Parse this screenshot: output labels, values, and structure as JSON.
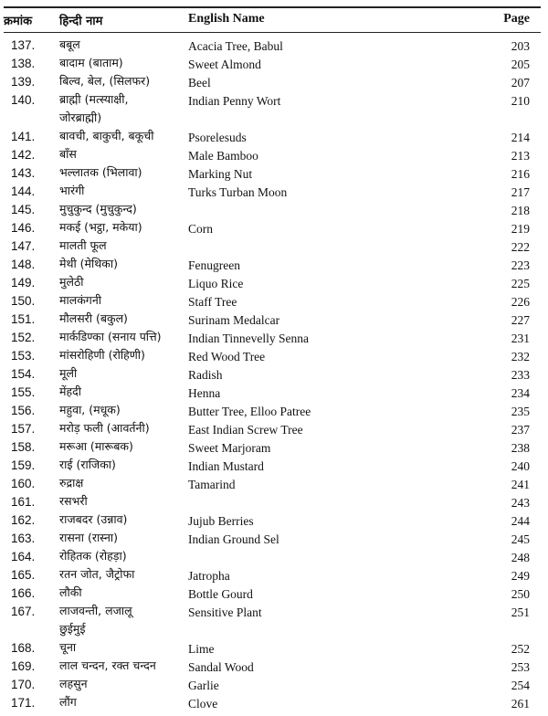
{
  "header": {
    "serial": "क्रमांक",
    "hindi": "हिन्दी नाम",
    "english": "English Name",
    "page": "Page"
  },
  "rows": [
    {
      "no": "137.",
      "hindi": "बबूल",
      "english": "Acacia Tree, Babul",
      "page": "203"
    },
    {
      "no": "138.",
      "hindi": "बादाम (बाताम)",
      "english": "Sweet Almond",
      "page": "205"
    },
    {
      "no": "139.",
      "hindi": "बिल्व, बेल, (सिलफर)",
      "english": "Beel",
      "page": "207"
    },
    {
      "no": "140.",
      "hindi": "ब्राह्मी (मत्स्याक्षी,",
      "hindi_cont": "जोरब्राह्मी)",
      "english": "Indian Penny Wort",
      "page": "210"
    },
    {
      "no": "141.",
      "hindi": "बावची, बाकुची, बकूची",
      "english": "Psorelesuds",
      "page": "214"
    },
    {
      "no": "142.",
      "hindi": "बाँस",
      "english": "Male Bamboo",
      "page": "213"
    },
    {
      "no": "143.",
      "hindi": "भल्लातक (भिलावा)",
      "english": "Marking Nut",
      "page": "216"
    },
    {
      "no": "144.",
      "hindi": "भारंगी",
      "english": "Turks Turban Moon",
      "page": "217"
    },
    {
      "no": "145.",
      "hindi": "मुचुकुन्द (मुचुकुन्द)",
      "english": "",
      "page": "218"
    },
    {
      "no": "146.",
      "hindi": "मकई (भट्ठा, मकेया)",
      "english": "Corn",
      "page": "219"
    },
    {
      "no": "147.",
      "hindi": "मालती फूल",
      "english": "",
      "page": "222"
    },
    {
      "no": "148.",
      "hindi": "मेथी (मेथिका)",
      "english": "Fenugreen",
      "page": "223"
    },
    {
      "no": "149.",
      "hindi": "मुलेठी",
      "english": "Liquo Rice",
      "page": "225"
    },
    {
      "no": "150.",
      "hindi": "मालकंगनी",
      "english": "Staff Tree",
      "page": "226"
    },
    {
      "no": "151.",
      "hindi": "मौलसरी (बकुल)",
      "english": "Surinam Medalcar",
      "page": "227"
    },
    {
      "no": "152.",
      "hindi": "मार्कडिण्का (सनाय पत्ति)",
      "english": "Indian Tinnevelly Senna",
      "page": "231"
    },
    {
      "no": "153.",
      "hindi": "मांसरोहिणी (रोहिणी)",
      "english": "Red Wood Tree",
      "page": "232"
    },
    {
      "no": "154.",
      "hindi": "मूली",
      "english": "Radish",
      "page": "233"
    },
    {
      "no": "155.",
      "hindi": "मेंहदी",
      "english": "Henna",
      "page": "234"
    },
    {
      "no": "156.",
      "hindi": "महुवा, (मधूक)",
      "english": "Butter Tree, Elloo Patree",
      "page": "235"
    },
    {
      "no": "157.",
      "hindi": "मरोड़ फली (आवर्तनी)",
      "english": "East Indian Screw Tree",
      "page": "237"
    },
    {
      "no": "158.",
      "hindi": "मरूआ (मारूबक)",
      "english": "Sweet Marjoram",
      "page": "238"
    },
    {
      "no": "159.",
      "hindi": "राई (राजिका)",
      "english": "Indian Mustard",
      "page": "240"
    },
    {
      "no": "160.",
      "hindi": "रुद्राक्ष",
      "english": "Tamarind",
      "page": "241"
    },
    {
      "no": "161.",
      "hindi": "रसभरी",
      "english": "",
      "page": "243"
    },
    {
      "no": "162.",
      "hindi": "राजबदर (उन्नाव)",
      "english": "Jujub Berries",
      "page": "244"
    },
    {
      "no": "163.",
      "hindi": "रासना (रास्ना)",
      "english": "Indian Ground Sel",
      "page": "245"
    },
    {
      "no": "164.",
      "hindi": "रोहितक (रोहड़ा)",
      "english": "",
      "page": "248"
    },
    {
      "no": "165.",
      "hindi": "रतन जोत, जैट्रोफा",
      "english": "Jatropha",
      "page": "249"
    },
    {
      "no": "166.",
      "hindi": "लौकी",
      "english": "Bottle Gourd",
      "page": "250"
    },
    {
      "no": "167.",
      "hindi": "लाजवन्ती, लजालू",
      "hindi_cont": "छुईमुई",
      "english": "Sensitive Plant",
      "page": "251"
    },
    {
      "no": "168.",
      "hindi": "चूना",
      "english": "Lime",
      "page": "252"
    },
    {
      "no": "169.",
      "hindi": "लाल चन्दन, रक्त चन्दन",
      "english": "Sandal Wood",
      "page": "253"
    },
    {
      "no": "170.",
      "hindi": "लहसुन",
      "english": "Garlie",
      "page": "254"
    },
    {
      "no": "171.",
      "hindi": "लौंग",
      "english": "Clove",
      "page": "261"
    }
  ]
}
